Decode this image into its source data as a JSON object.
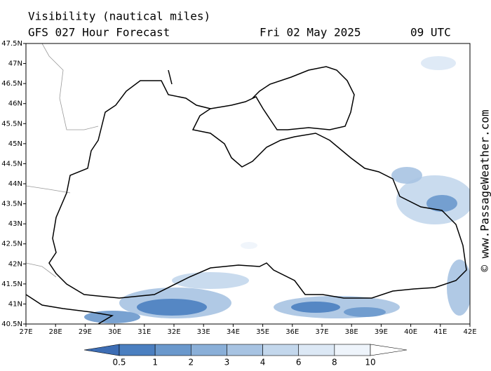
{
  "header": {
    "title": "Visibility (nautical miles)",
    "model": "GFS 027 Hour Forecast",
    "date": "Fri 02 May 2025",
    "time": "09 UTC"
  },
  "map": {
    "lat_labels": [
      "47.5N",
      "47N",
      "46.5N",
      "46N",
      "45.5N",
      "45N",
      "44.5N",
      "44N",
      "43.5N",
      "43N",
      "42.5N",
      "42N",
      "41.5N",
      "41N",
      "40.5N"
    ],
    "lon_labels": [
      "27E",
      "28E",
      "29E",
      "30E",
      "31E",
      "32E",
      "33E",
      "34E",
      "35E",
      "36E",
      "37E",
      "38E",
      "39E",
      "40E",
      "41E",
      "42E"
    ]
  },
  "colorbar": {
    "ticks": [
      0.5,
      1,
      2,
      3,
      4,
      6,
      8,
      10
    ],
    "colors": [
      "#3d6db4",
      "#4b7fc0",
      "#6a98cc",
      "#8aafd8",
      "#a7c3e2",
      "#c3d7ec",
      "#dce8f5",
      "#eef4fb",
      "#ffffff"
    ]
  },
  "watermark": "© www.PassageWeather.com"
}
